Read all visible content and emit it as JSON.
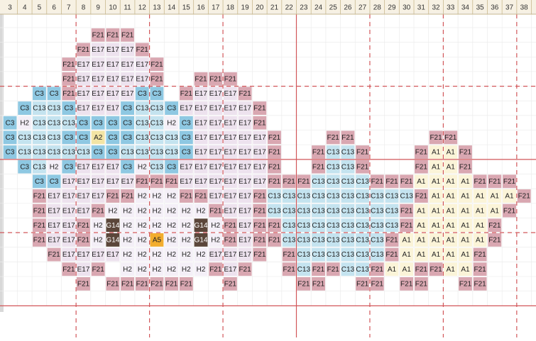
{
  "columns": [
    3,
    4,
    5,
    6,
    7,
    8,
    9,
    10,
    11,
    12,
    13,
    14,
    15,
    16,
    17,
    18,
    19,
    20,
    21,
    22,
    23,
    24,
    25,
    26,
    27,
    28,
    29,
    30,
    31,
    32,
    33,
    34,
    35,
    36,
    37,
    38
  ],
  "palette": {
    "F21": "#d9a7b1",
    "E17": "#ede2ee",
    "C3": "#8ec8e2",
    "C13": "#c4e3ef",
    "H2": "#f4eff7",
    "A2": "#f3e4a4",
    "A1": "#fbf4d8",
    "A5": "#f2ad2e",
    "G14": "#5b463a"
  },
  "rows": [
    [
      null,
      null,
      null,
      null,
      null,
      null,
      "F21",
      "F21",
      "F21"
    ],
    [
      null,
      null,
      null,
      null,
      null,
      "F21",
      "E17",
      "E17",
      "E17",
      "F21"
    ],
    [
      null,
      null,
      null,
      null,
      "F21",
      "E17",
      "E17",
      "E17",
      "E17",
      "E17",
      "F21"
    ],
    [
      null,
      null,
      null,
      null,
      "F21",
      "E17",
      "E17",
      "E17",
      "E17",
      "E17",
      "F21",
      null,
      null,
      "F21",
      "F21",
      "F21"
    ],
    [
      null,
      null,
      "C3",
      "C3",
      "F21",
      "E17",
      "E17",
      "E17",
      "E17",
      "C3",
      "C3",
      null,
      "F21",
      "E17",
      "E17",
      "E17",
      "F21"
    ],
    [
      null,
      "C3",
      "C13",
      "C13",
      "C3",
      "E17",
      "E17",
      "E17",
      "C3",
      "C13",
      "C13",
      "C3",
      "E17",
      "E17",
      "E17",
      "E17",
      "E17",
      "F21"
    ],
    [
      "C3",
      "H2",
      "C13",
      "C13",
      "C13",
      "C3",
      "C3",
      "C3",
      "C3",
      "C13",
      "C13",
      "H2",
      "C3",
      "E17",
      "E17",
      "E17",
      "E17",
      "F21"
    ],
    [
      "C3",
      "C13",
      "C13",
      "C13",
      "C3",
      "C3",
      "A2",
      "C3",
      "C3",
      "C13",
      "C13",
      "C13",
      "C3",
      "E17",
      "E17",
      "E17",
      "E17",
      "E17",
      "F21",
      null,
      null,
      null,
      "F21",
      "F21",
      null,
      null,
      null,
      null,
      null,
      "F21",
      "F21"
    ],
    [
      "C3",
      "C13",
      "C13",
      "C13",
      "C13",
      "C13",
      "C3",
      "C3",
      "C13",
      "C13",
      "C13",
      "C13",
      "C3",
      "E17",
      "E17",
      "E17",
      "E17",
      "E17",
      "F21",
      null,
      null,
      "F21",
      "C13",
      "C13",
      "F21",
      null,
      null,
      null,
      "F21",
      "A1",
      "A1",
      "F21"
    ],
    [
      null,
      "C3",
      "C13",
      "H2",
      "C3",
      "E17",
      "E17",
      "E17",
      "C3",
      "H2",
      "C13",
      "C3",
      "E17",
      "E17",
      "E17",
      "E17",
      "E17",
      "E17",
      "F21",
      null,
      null,
      "F21",
      "C13",
      "C13",
      "F21",
      null,
      null,
      null,
      "F21",
      "A1",
      "A1",
      "F21"
    ],
    [
      null,
      null,
      "C3",
      "C3",
      "E17",
      "E17",
      "E17",
      "E17",
      "E17",
      "F21",
      "F21",
      "F21",
      "E17",
      "E17",
      "E17",
      "E17",
      "E17",
      "E17",
      "F21",
      "F21",
      "F21",
      "C13",
      "C13",
      "C13",
      "C13",
      "F21",
      "F21",
      "F21",
      "A1",
      "A1",
      "A1",
      "A1",
      "F21",
      "F21",
      "F21"
    ],
    [
      null,
      null,
      "F21",
      "E17",
      "E17",
      "E17",
      "E17",
      "F21",
      "F21",
      "H2",
      "H2",
      "H2",
      "F21",
      "F21",
      "E17",
      "E17",
      "E17",
      "F21",
      "C13",
      "C13",
      "C13",
      "C13",
      "C13",
      "C13",
      "C13",
      "C13",
      "C13",
      "C13",
      "F21",
      "A1",
      "A1",
      "A1",
      "A1",
      "A1",
      "A1",
      "F21"
    ],
    [
      null,
      null,
      "F21",
      "E17",
      "E17",
      "E17",
      "F21",
      "H2",
      "H2",
      "H2",
      "H2",
      "H2",
      "H2",
      "H2",
      "F21",
      "E17",
      "E17",
      "F21",
      "C13",
      "C13",
      "C13",
      "C13",
      "C13",
      "C13",
      "C13",
      "C13",
      "C13",
      "F21",
      "A1",
      "A1",
      "A1",
      "A1",
      "A1",
      "A1",
      "F21"
    ],
    [
      null,
      null,
      "F21",
      "E17",
      "E17",
      "F21",
      "H2",
      "G14",
      "H2",
      "H2",
      "H2",
      "H2",
      "H2",
      "G14",
      "H2",
      "F21",
      "E17",
      "F21",
      "F21",
      "C13",
      "C13",
      "C13",
      "C13",
      "C13",
      "C13",
      "C13",
      "C13",
      "F21",
      "A1",
      "A1",
      "A1",
      "A1",
      "A1",
      "F21"
    ],
    [
      null,
      null,
      "F21",
      "E17",
      "E17",
      "F21",
      "H2",
      "G14",
      "H2",
      "H2",
      "A5",
      "H2",
      "H2",
      "G14",
      "H2",
      "F21",
      "E17",
      "F21",
      "F21",
      "C13",
      "C13",
      "C13",
      "C13",
      "C13",
      "C13",
      "C13",
      "F21",
      "A1",
      "A1",
      "A1",
      "A1",
      "A1",
      "A1",
      "F21"
    ],
    [
      null,
      null,
      null,
      "F21",
      "E17",
      "E17",
      "E17",
      "E17",
      "H2",
      "H2",
      "H2",
      "H2",
      "H2",
      "H2",
      "E17",
      "E17",
      "E17",
      "F21",
      null,
      "F21",
      "C13",
      "C13",
      "C13",
      "C13",
      "C13",
      "C13",
      "F21",
      "A1",
      "A1",
      "A1",
      "A1",
      "A1",
      "F21"
    ],
    [
      null,
      null,
      null,
      null,
      "F21",
      "E17",
      "F21",
      null,
      "H2",
      "H2",
      "H2",
      "H2",
      "H2",
      "H2",
      "F21",
      "E17",
      "F21",
      null,
      null,
      "F21",
      "C13",
      "F21",
      "F21",
      "C13",
      "C13",
      "F21",
      "A1",
      "A1",
      "F21",
      "F21",
      "A1",
      "A1",
      "F21"
    ],
    [
      null,
      null,
      null,
      null,
      null,
      "F21",
      null,
      "F21",
      "F21",
      "F21",
      "F21",
      "F21",
      "F21",
      null,
      null,
      "F21",
      null,
      null,
      null,
      null,
      "F21",
      "F21",
      null,
      null,
      "F21",
      "F21",
      null,
      "F21",
      "F21",
      null,
      null,
      "F21",
      "F21"
    ]
  ]
}
